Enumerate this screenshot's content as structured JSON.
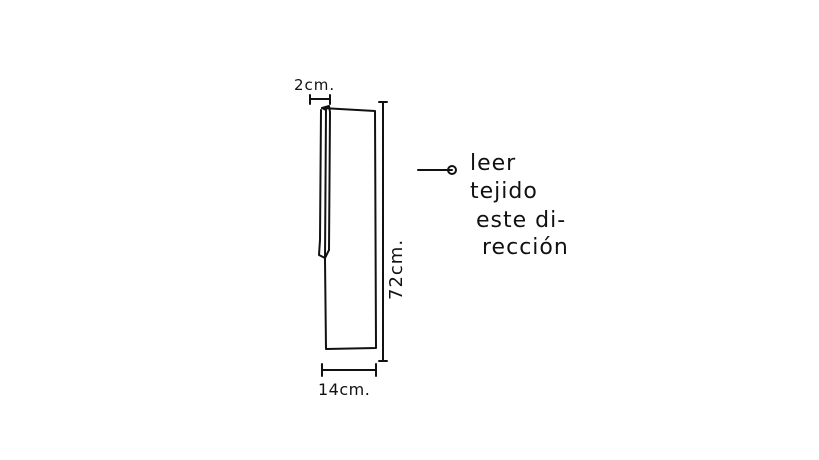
{
  "diagram": {
    "top_dimension": "2cm.",
    "bottom_dimension": "14cm.",
    "side_dimension": "72cm.",
    "note_lines": [
      "leer",
      "tejido",
      "este di-",
      "rección"
    ]
  }
}
